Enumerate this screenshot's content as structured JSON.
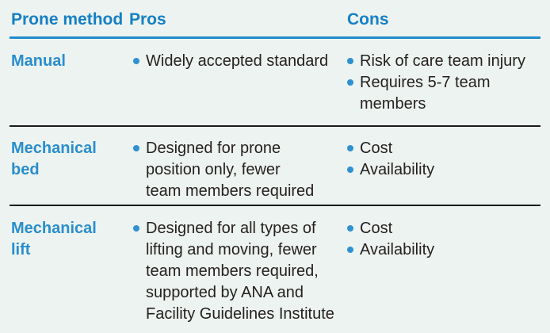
{
  "colors": {
    "background": "#edf3f0",
    "header_blue": "#1580c4",
    "label_blue": "#2a8ecd",
    "bullet_blue": "#2e91d2",
    "header_rule_blue": "#1f8ccd",
    "row_divider_dark": "#1b1b1b",
    "body_text": "#26211f"
  },
  "table": {
    "columns": [
      {
        "label": "Prone method"
      },
      {
        "label": "Pros"
      },
      {
        "label": "Cons"
      }
    ],
    "rows": [
      {
        "method": "Manual",
        "pros": [
          "Widely accepted standard"
        ],
        "cons": [
          "Risk of care team injury",
          "Requires 5-7 team\nmembers"
        ]
      },
      {
        "method": "Mechanical\nbed",
        "pros": [
          "Designed for prone\nposition only, fewer\nteam members required"
        ],
        "cons": [
          "Cost",
          "Availability"
        ]
      },
      {
        "method": "Mechanical\nlift",
        "pros": [
          "Designed for all types of\nlifting and moving, fewer\nteam members required,\nsupported by ANA and\nFacility Guidelines Institute"
        ],
        "cons": [
          "Cost",
          "Availability"
        ]
      }
    ]
  }
}
